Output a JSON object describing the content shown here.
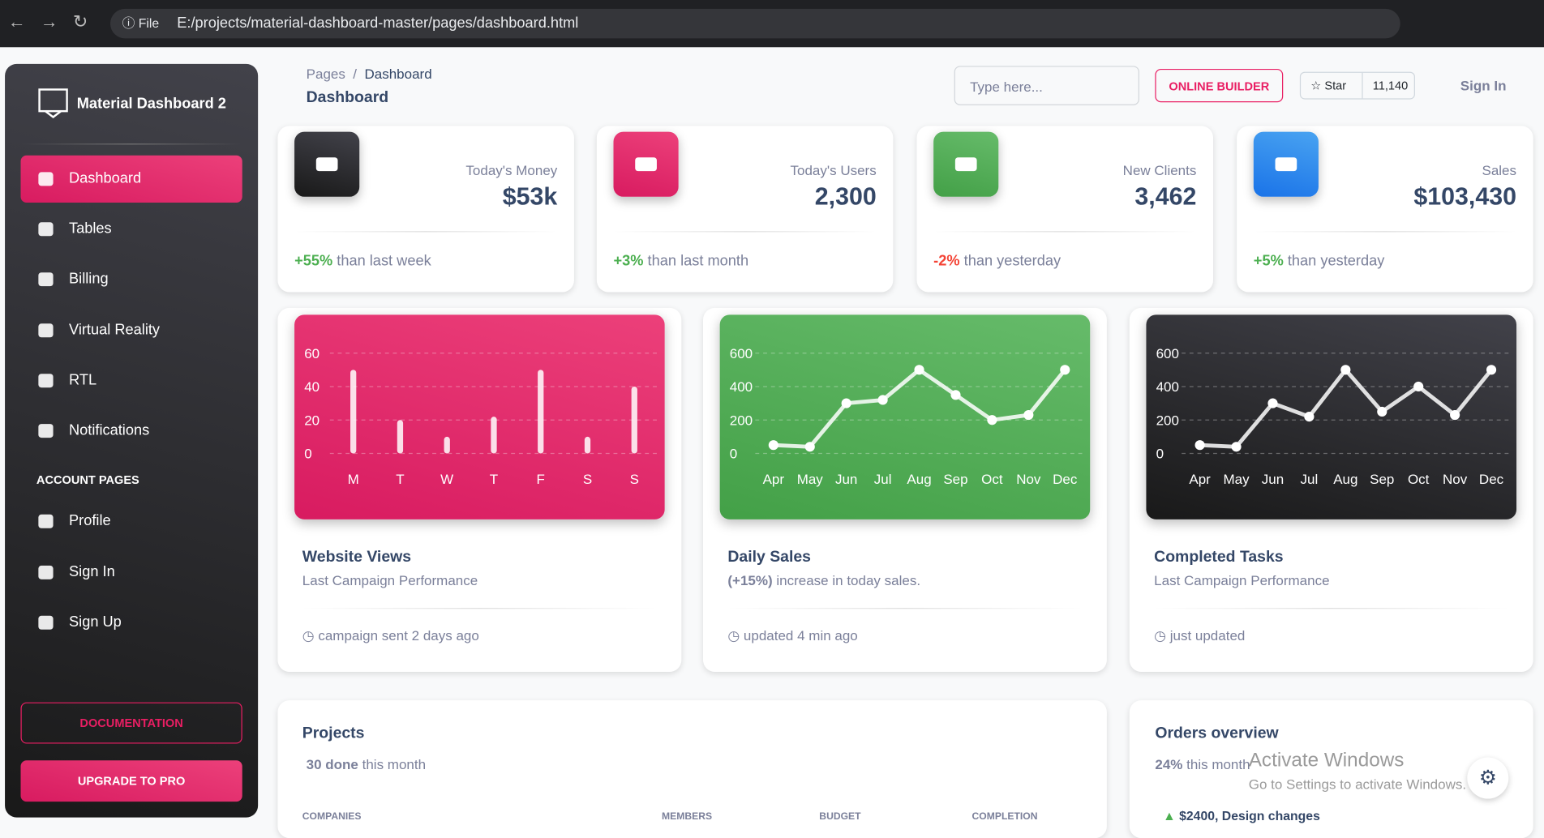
{
  "browser": {
    "file": "File",
    "url": "E:/projects/material-dashboard-master/pages/dashboard.html"
  },
  "sidebar": {
    "brand": "Material Dashboard 2",
    "nav": [
      "Dashboard",
      "Tables",
      "Billing",
      "Virtual Reality",
      "RTL",
      "Notifications"
    ],
    "section": "ACCOUNT PAGES",
    "account": [
      "Profile",
      "Sign In",
      "Sign Up"
    ],
    "buttons": [
      "DOCUMENTATION",
      "UPGRADE TO PRO"
    ]
  },
  "header": {
    "breadcrumb": [
      "Pages",
      "Dashboard"
    ],
    "separator": "/",
    "title": "Dashboard",
    "search_placeholder": "Type here...",
    "builder": "ONLINE BUILDER",
    "star": "Star",
    "stars": "11,140",
    "sign_in": "Sign In"
  },
  "stats": [
    {
      "label": "Today's Money",
      "value": "$53k",
      "change": "+55%",
      "note": "than last week"
    },
    {
      "label": "Today's Users",
      "value": "2,300",
      "change": "+3%",
      "note": "than last month"
    },
    {
      "label": "New Clients",
      "value": "3,462",
      "change": "-2%",
      "note": "than yesterday"
    },
    {
      "label": "Sales",
      "value": "$103,430",
      "change": "+5%",
      "note": "than yesterday"
    }
  ],
  "charts": [
    {
      "type": "bar",
      "title": "Website Views",
      "subtitle": "Last Campaign Performance",
      "footer": "campaign sent 2 days ago",
      "categories": [
        "M",
        "T",
        "W",
        "T",
        "F",
        "S",
        "S"
      ],
      "values": [
        50,
        20,
        10,
        22,
        50,
        10,
        40
      ],
      "ylim": [
        0,
        60
      ],
      "yticks": [
        0,
        20,
        40,
        60
      ]
    },
    {
      "type": "line",
      "title": "Daily Sales",
      "subtitle_highlight": "(+15%)",
      "subtitle": "increase in today sales.",
      "footer": "updated 4 min ago",
      "categories": [
        "Apr",
        "May",
        "Jun",
        "Jul",
        "Aug",
        "Sep",
        "Oct",
        "Nov",
        "Dec"
      ],
      "values": [
        50,
        40,
        300,
        320,
        500,
        350,
        200,
        230,
        500
      ],
      "ylim": [
        0,
        600
      ],
      "yticks": [
        0,
        200,
        400,
        600
      ]
    },
    {
      "type": "line",
      "title": "Completed Tasks",
      "subtitle": "Last Campaign Performance",
      "footer": "just updated",
      "categories": [
        "Apr",
        "May",
        "Jun",
        "Jul",
        "Aug",
        "Sep",
        "Oct",
        "Nov",
        "Dec"
      ],
      "values": [
        50,
        40,
        300,
        220,
        500,
        250,
        400,
        230,
        500
      ],
      "ylim": [
        0,
        600
      ],
      "yticks": [
        0,
        200,
        400,
        600
      ]
    }
  ],
  "projects": {
    "title": "Projects",
    "done": "30 done",
    "note": "this month",
    "columns": [
      "COMPANIES",
      "MEMBERS",
      "BUDGET",
      "COMPLETION"
    ]
  },
  "orders": {
    "title": "Orders overview",
    "percent": "24%",
    "note": "this month",
    "items": [
      {
        "amount": "$2400,",
        "text": "Design changes"
      }
    ]
  },
  "watermark": {
    "title": "Activate Windows",
    "text": "Go to Settings to activate Windows."
  }
}
